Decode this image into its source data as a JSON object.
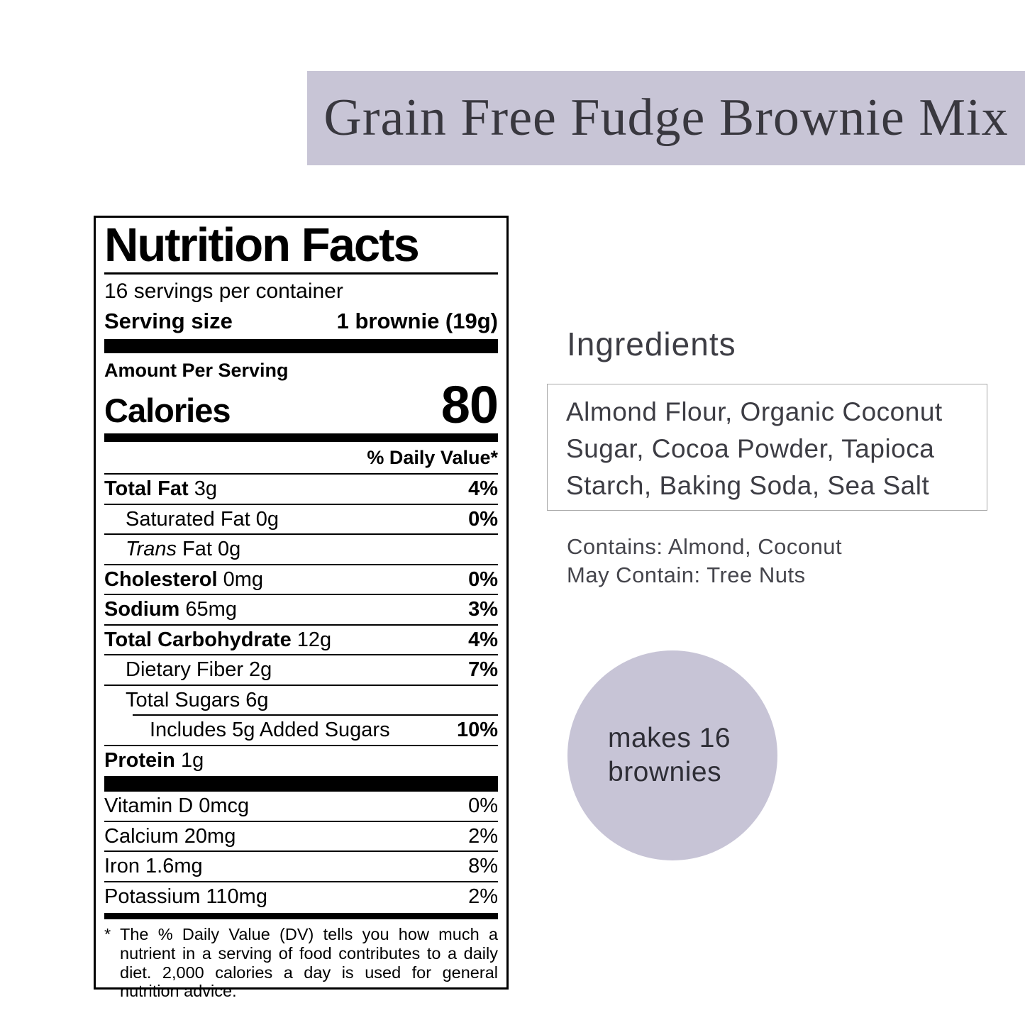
{
  "colors": {
    "lavender_banner": "#c8c5d6",
    "lavender_circle": "#c7c4d6",
    "label_ink": "#000000"
  },
  "banner": {
    "title": "Grain Free Fudge Brownie Mix"
  },
  "nutrition": {
    "title": "Nutrition Facts",
    "servings_per_container": "16 servings per container",
    "serving_size_label": "Serving size",
    "serving_size_value": "1 brownie (19g)",
    "amount_per_serving": "Amount Per Serving",
    "calories_label": "Calories",
    "calories_value": "80",
    "daily_value_header": "% Daily Value*",
    "rows": [
      {
        "bold": "Total Fat",
        "rest": " 3g",
        "pct": "4%"
      },
      {
        "bold": "",
        "rest": "Saturated Fat 0g",
        "pct": "0%"
      },
      {
        "italic": "Trans",
        "rest": " Fat 0g",
        "pct": ""
      },
      {
        "bold": "Cholesterol",
        "rest": " 0mg",
        "pct": "0%"
      },
      {
        "bold": "Sodium",
        "rest": " 65mg",
        "pct": "3%"
      },
      {
        "bold": "Total Carbohydrate",
        "rest": " 12g",
        "pct": "4%"
      },
      {
        "bold": "",
        "rest": "Dietary Fiber 2g",
        "pct": "7%"
      },
      {
        "bold": "",
        "rest": "Total Sugars 6g",
        "pct": ""
      },
      {
        "bold": "",
        "rest": "Includes 5g Added Sugars",
        "pct": "10%"
      },
      {
        "bold": "Protein",
        "rest": " 1g",
        "pct": ""
      }
    ],
    "vitamins": [
      {
        "rest": "Vitamin D 0mcg",
        "pct": "0%"
      },
      {
        "rest": "Calcium 20mg",
        "pct": "2%"
      },
      {
        "rest": "Iron 1.6mg",
        "pct": "8%"
      },
      {
        "rest": "Potassium 110mg",
        "pct": "2%"
      }
    ],
    "footnote": "* The % Daily Value (DV) tells you how much a nutrient in a serving of food contributes to a daily diet. 2,000 calories a day is used for general nutrition advice."
  },
  "ingredients": {
    "heading": "Ingredients",
    "list": "Almond Flour, Organic Coconut Sugar, Cocoa Powder, Tapioca Starch, Baking Soda, Sea Salt",
    "contains": "Contains: Almond, Coconut",
    "may_contain": "May Contain: Tree Nuts"
  },
  "badge": {
    "line1": "makes 16",
    "line2": "brownies"
  }
}
